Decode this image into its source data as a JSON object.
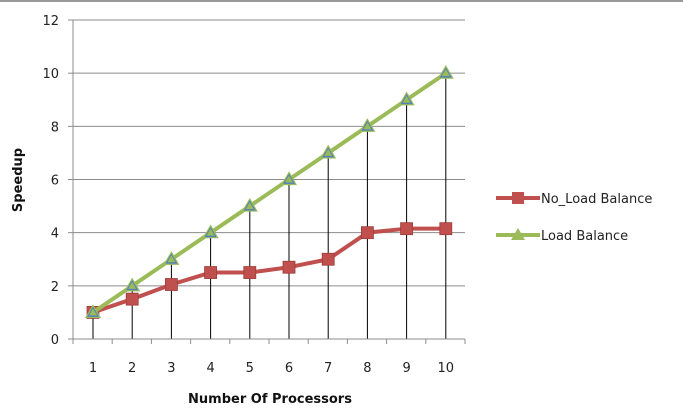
{
  "chart_data": {
    "type": "line",
    "title": "",
    "xlabel": "Number Of Processors",
    "ylabel": "Speedup",
    "x": [
      1,
      2,
      3,
      4,
      5,
      6,
      7,
      8,
      9,
      10
    ],
    "ylim": [
      0,
      12
    ],
    "yticks": [
      0,
      2,
      4,
      6,
      8,
      10,
      12
    ],
    "grid": "horizontal",
    "drop_lines": true,
    "legend_position": "right",
    "series": [
      {
        "name": "No_Load Balance",
        "values": [
          1.0,
          1.5,
          2.05,
          2.5,
          2.5,
          2.7,
          3.0,
          4.0,
          4.15,
          4.15
        ],
        "color": "#c0504d",
        "marker": "square"
      },
      {
        "name": "Load Balance",
        "values": [
          1,
          2,
          3,
          4,
          5,
          6,
          7,
          8,
          9,
          10
        ],
        "color": "#9bbb59",
        "marker": "triangle"
      }
    ]
  }
}
